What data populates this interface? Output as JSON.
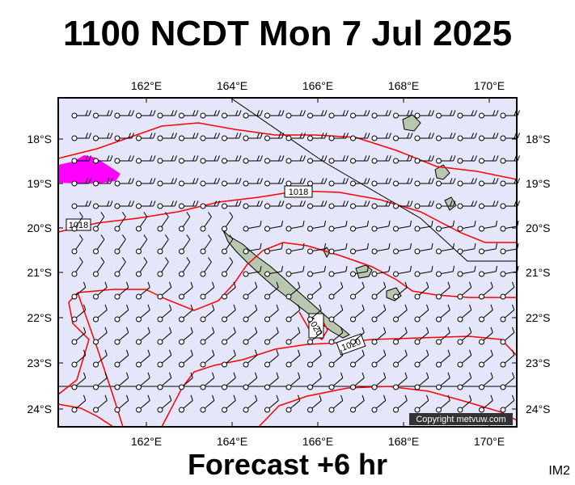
{
  "title": "1100 NCDT Mon 7 Jul 2025",
  "footer": "Forecast +6 hr",
  "tag": "IM2",
  "copyright": "Copyright metvuw.com",
  "map": {
    "lon_labels": [
      "162°E",
      "164°E",
      "166°E",
      "168°E",
      "170°E"
    ],
    "lat_labels": [
      "18°S",
      "19°S",
      "20°S",
      "21°S",
      "22°S",
      "23°S",
      "24°S"
    ],
    "isobar_labels": [
      "1018",
      "1018",
      "1020",
      "1020"
    ],
    "colors": {
      "background": "#e6e6fa",
      "isobar": "#ff0000",
      "land": "#b8c8b0",
      "rain": "#ff00ff",
      "wind": "#000000"
    },
    "wind_symbol": "wind-barb-icon"
  }
}
